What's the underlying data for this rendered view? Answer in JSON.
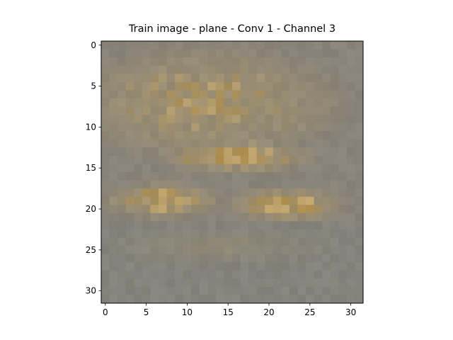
{
  "chart_data": {
    "type": "heatmap",
    "title": "Train image - plane - Conv 1 - Channel 3",
    "xlabel": "",
    "ylabel": "",
    "x_range": [
      -0.5,
      31.5
    ],
    "y_range": [
      31.5,
      -0.5
    ],
    "x_ticks": [
      0,
      5,
      10,
      15,
      20,
      25,
      30
    ],
    "y_ticks": [
      0,
      5,
      10,
      15,
      20,
      25,
      30
    ],
    "grid": false,
    "rows": 32,
    "cols": 32,
    "colors": {
      "background": "#8a8478",
      "lower_background": "#85837b",
      "tan": "#b09a6a",
      "ochre": "#b48c3c",
      "highlight": "#d0ae6c",
      "axis": "#000000"
    }
  }
}
